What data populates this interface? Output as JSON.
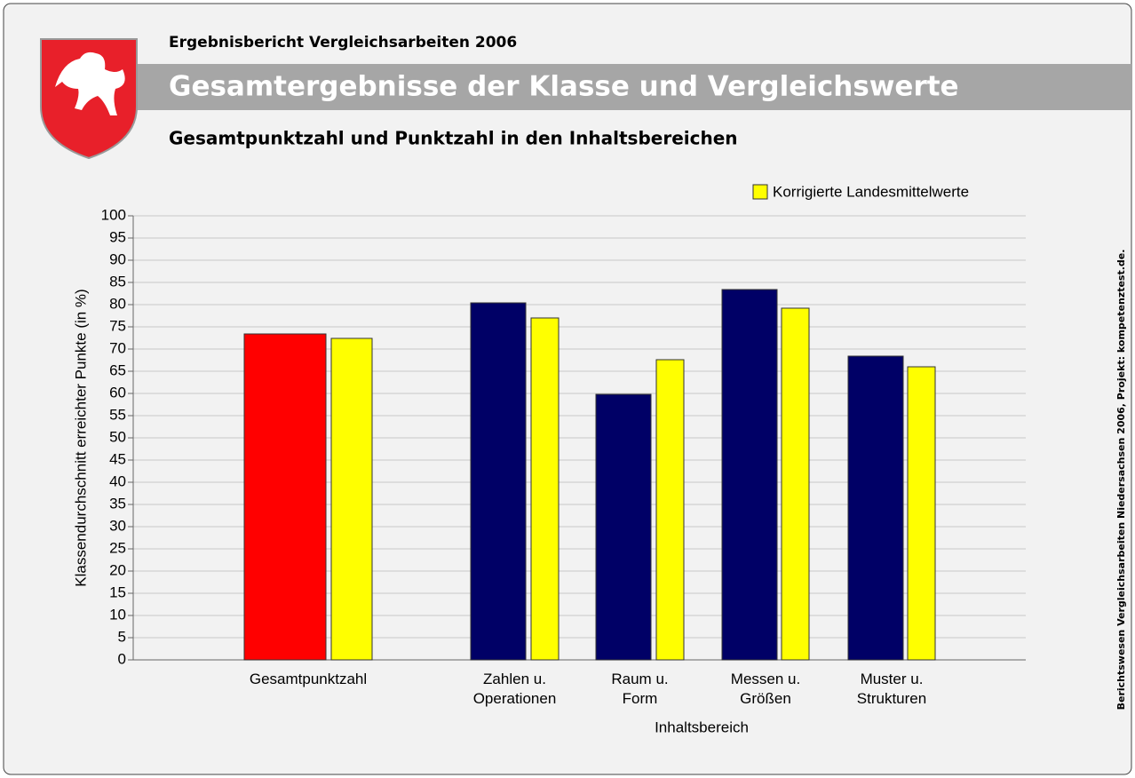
{
  "header": {
    "report": "Ergebnisbericht Vergleichsarbeiten 2006",
    "title": "Gesamtergebnisse der Klasse und Vergleichswerte",
    "subtitle": "Gesamtpunktzahl und Punktzahl in den Inhaltsbereichen"
  },
  "side_note": "Berichtswesen Vergleichsarbeiten Niedersachsen 2006, Projekt: kompetenztest.de.",
  "chart_data": {
    "type": "bar",
    "categories": [
      "Gesamtpunktzahl",
      "Zahlen u.\nOperationen",
      "Raum u.\nForm",
      "Messen u.\nGrößen",
      "Muster u.\nStrukturen"
    ],
    "series": [
      {
        "colors": [
          "#ff0000",
          "#000066",
          "#000066",
          "#000066",
          "#000066"
        ],
        "values": [
          73.4,
          80.4,
          59.8,
          83.4,
          68.4
        ]
      },
      {
        "name": "Korrigierte Landesmittelwerte",
        "color": "#ffff00",
        "values": [
          72.4,
          77,
          67.6,
          79.2,
          66
        ]
      }
    ],
    "ylabel": "Klassendurchschnitt erreichter Punkte (in %)",
    "xlabel": "Inhaltsbereich",
    "ylim": [
      0,
      100
    ],
    "yticks": [
      0,
      5,
      10,
      15,
      20,
      25,
      30,
      35,
      40,
      45,
      50,
      55,
      60,
      65,
      70,
      75,
      80,
      85,
      90,
      95,
      100
    ],
    "grid": true,
    "legend": "top-right"
  }
}
